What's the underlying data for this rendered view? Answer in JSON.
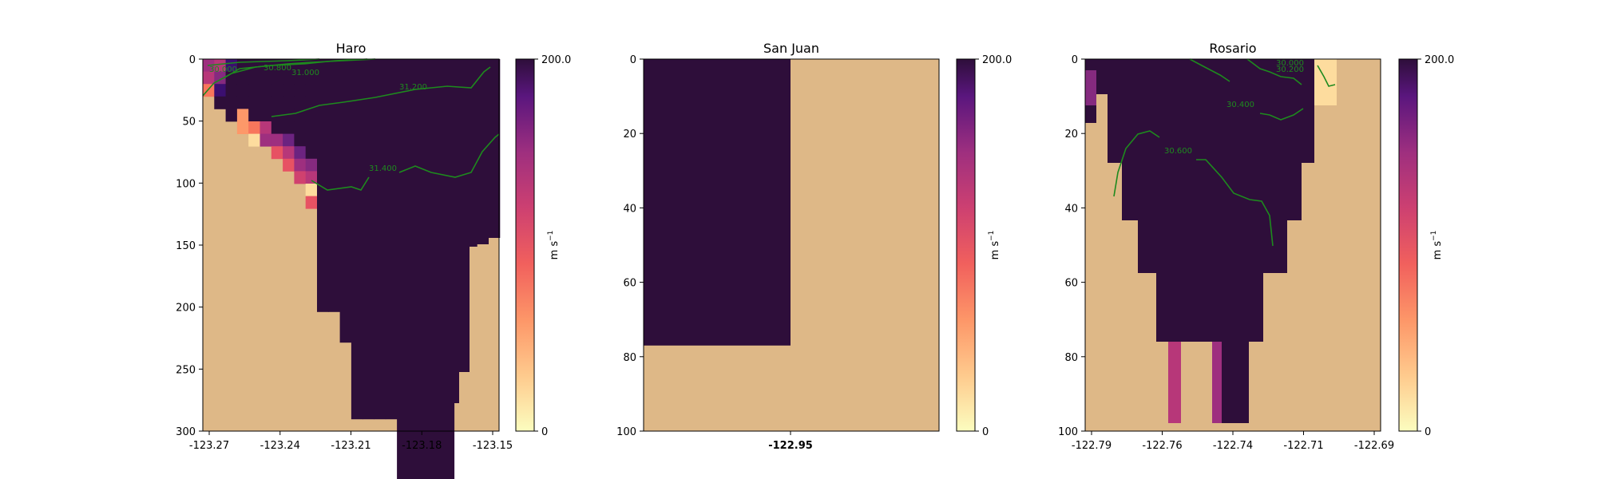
{
  "colors": {
    "land": "#deb887",
    "contour": "#1e8a1e",
    "cmap": [
      "#fcfdbf",
      "#fddc9e",
      "#feba80",
      "#fd9869",
      "#f8765c",
      "#e75263",
      "#d0416f",
      "#b73779",
      "#9e2f7f",
      "#852a7f",
      "#6c2380",
      "#51127c",
      "#3b0f70",
      "#2e0e3a"
    ]
  },
  "chart_data": [
    {
      "type": "heatmap",
      "title": "Haro",
      "colorbar": {
        "min": 0,
        "max": 200.0,
        "max_label": "200.0",
        "min_label": "0",
        "unit_label": "m s",
        "unit_sup": "−1"
      },
      "x_ticks": [
        "-123.27",
        "-123.24",
        "-123.21",
        "-123.18",
        "-123.15"
      ],
      "y_ticks": [
        "0",
        "50",
        "100",
        "150",
        "200",
        "250",
        "300"
      ],
      "ylim": [
        0,
        300
      ],
      "columns_frac_of_max": [
        [
          0.6,
          0.5,
          0.3
        ],
        [
          0.5,
          0.7,
          0.9,
          1.0
        ],
        [
          0.9,
          1.0,
          1.0,
          1.0,
          1.0
        ],
        [
          1.0,
          1.0,
          1.0,
          1.0,
          0.2,
          0.2
        ],
        [
          1.0,
          1.0,
          1.0,
          1.0,
          1.0,
          0.3,
          0.1
        ],
        [
          1.0,
          1.0,
          1.0,
          1.0,
          1.0,
          0.5,
          0.6
        ],
        [
          1.0,
          1.0,
          1.0,
          1.0,
          1.0,
          1.0,
          0.6,
          0.4
        ],
        [
          1.0,
          1.0,
          1.0,
          1.0,
          1.0,
          1.0,
          0.8,
          0.5,
          0.4
        ],
        [
          1.0,
          1.0,
          1.0,
          1.0,
          1.0,
          1.0,
          1.0,
          0.8,
          0.6,
          0.45
        ],
        [
          1.0,
          1.0,
          1.0,
          1.0,
          1.0,
          1.0,
          1.0,
          1.0,
          0.7,
          0.5,
          0.1,
          0.4
        ]
      ],
      "contours": [
        "30.000",
        "30.800",
        "31.000",
        "31.200",
        "31.400"
      ]
    },
    {
      "type": "heatmap",
      "title": "San Juan",
      "colorbar": {
        "min": 0,
        "max": 200.0,
        "max_label": "200.0",
        "min_label": "0",
        "unit_label": "m s",
        "unit_sup": "−1"
      },
      "x_ticks": [
        "-122.95"
      ],
      "y_ticks": [
        "0",
        "20",
        "40",
        "60",
        "80",
        "100"
      ],
      "ylim": [
        0,
        100
      ],
      "water_depth": 77,
      "water_value_frac_of_max": 1.0
    },
    {
      "type": "heatmap",
      "title": "Rosario",
      "colorbar": {
        "min": 0,
        "max": 200.0,
        "max_label": "200.0",
        "min_label": "0",
        "unit_label": "m s",
        "unit_sup": "−1"
      },
      "x_ticks": [
        "-122.79",
        "-122.76",
        "-122.74",
        "-122.71",
        "-122.69"
      ],
      "y_ticks": [
        "0",
        "20",
        "40",
        "60",
        "80",
        "100"
      ],
      "ylim": [
        0,
        100
      ],
      "contours": [
        "30.000",
        "30.200",
        "30.400",
        "30.600"
      ]
    }
  ]
}
